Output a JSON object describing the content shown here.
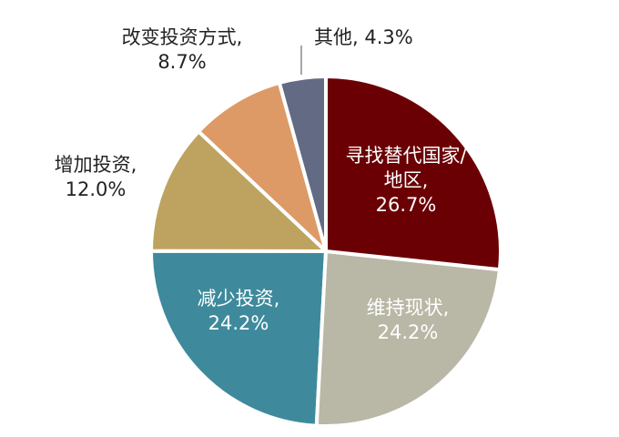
{
  "chart_data": {
    "type": "pie",
    "categories": [
      "寻找替代国家/地区,",
      "维持现状,",
      "减少投资,",
      "增加投资,",
      "改变投资方式,",
      "其他,"
    ],
    "values": [
      26.7,
      24.2,
      24.2,
      12.0,
      8.7,
      4.3
    ],
    "value_labels": [
      "26.7%",
      "24.2%",
      "24.2%",
      "12.0%",
      "8.7%",
      "4.3%"
    ],
    "colors": [
      "#6b0004",
      "#b9b7a5",
      "#3e8a9c",
      "#bda35f",
      "#dd9a66",
      "#626a84"
    ]
  }
}
